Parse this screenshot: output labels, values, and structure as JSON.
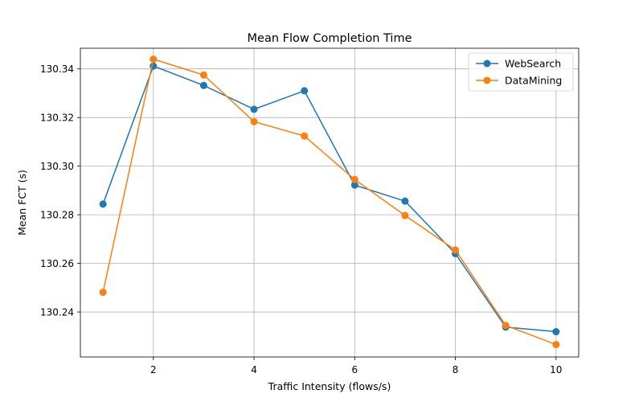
{
  "chart_data": {
    "type": "line",
    "title": "Mean Flow Completion Time",
    "xlabel": "Traffic Intensity (flows/s)",
    "ylabel": "Mean FCT (s)",
    "x": [
      1,
      2,
      3,
      4,
      5,
      6,
      7,
      8,
      9,
      10
    ],
    "xlim": [
      0.55,
      10.45
    ],
    "ylim": [
      130.2215,
      130.3485
    ],
    "xticks": [
      2,
      4,
      6,
      8,
      10
    ],
    "yticks": [
      130.24,
      130.26,
      130.28,
      130.3,
      130.32,
      130.34
    ],
    "xtick_labels": [
      "2",
      "4",
      "6",
      "8",
      "10"
    ],
    "ytick_labels": [
      "130.24",
      "130.26",
      "130.28",
      "130.30",
      "130.32",
      "130.34"
    ],
    "grid": true,
    "legend": "top-right",
    "series": [
      {
        "name": "WebSearch",
        "color": "#1f77b4",
        "values": [
          130.2844,
          130.3412,
          130.3332,
          130.3234,
          130.331,
          130.2922,
          130.2856,
          130.264,
          130.2338,
          130.2319
        ]
      },
      {
        "name": "DataMining",
        "color": "#ff7f0e",
        "values": [
          130.2481,
          130.344,
          130.3375,
          130.3183,
          130.3124,
          130.2945,
          130.2797,
          130.2655,
          130.2345,
          130.2266
        ]
      }
    ]
  }
}
